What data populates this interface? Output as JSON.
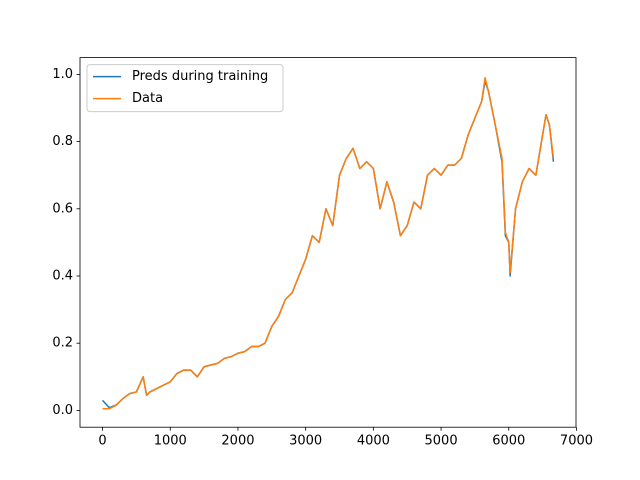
{
  "chart_data": {
    "type": "line",
    "x": [
      0,
      100,
      200,
      300,
      400,
      500,
      600,
      650,
      700,
      800,
      900,
      1000,
      1100,
      1200,
      1300,
      1400,
      1500,
      1600,
      1700,
      1800,
      1900,
      2000,
      2100,
      2200,
      2300,
      2400,
      2500,
      2600,
      2700,
      2800,
      2900,
      3000,
      3100,
      3200,
      3300,
      3400,
      3500,
      3600,
      3700,
      3800,
      3900,
      4000,
      4100,
      4200,
      4300,
      4400,
      4500,
      4600,
      4700,
      4800,
      4900,
      5000,
      5100,
      5200,
      5300,
      5400,
      5500,
      5600,
      5650,
      5700,
      5800,
      5900,
      5950,
      6000,
      6020,
      6100,
      6200,
      6300,
      6400,
      6500,
      6550,
      6600,
      6660
    ],
    "series": [
      {
        "name": "Preds during training",
        "color": "#1f77b4",
        "values": [
          0.03,
          0.008,
          0.016,
          0.035,
          0.05,
          0.055,
          0.1,
          0.045,
          0.055,
          0.065,
          0.075,
          0.085,
          0.11,
          0.12,
          0.12,
          0.1,
          0.13,
          0.135,
          0.14,
          0.155,
          0.16,
          0.17,
          0.175,
          0.19,
          0.19,
          0.2,
          0.25,
          0.28,
          0.33,
          0.35,
          0.4,
          0.45,
          0.52,
          0.5,
          0.6,
          0.55,
          0.7,
          0.75,
          0.78,
          0.72,
          0.74,
          0.72,
          0.6,
          0.68,
          0.62,
          0.52,
          0.55,
          0.62,
          0.6,
          0.7,
          0.72,
          0.7,
          0.73,
          0.73,
          0.75,
          0.82,
          0.87,
          0.92,
          0.98,
          0.95,
          0.85,
          0.74,
          0.52,
          0.5,
          0.4,
          0.6,
          0.68,
          0.72,
          0.7,
          0.82,
          0.88,
          0.85,
          0.74
        ]
      },
      {
        "name": "Data",
        "color": "#ff7f0e",
        "values": [
          0.005,
          0.005,
          0.015,
          0.035,
          0.05,
          0.055,
          0.1,
          0.045,
          0.055,
          0.065,
          0.075,
          0.085,
          0.11,
          0.12,
          0.12,
          0.1,
          0.13,
          0.135,
          0.14,
          0.155,
          0.16,
          0.17,
          0.175,
          0.19,
          0.19,
          0.2,
          0.25,
          0.28,
          0.33,
          0.35,
          0.4,
          0.45,
          0.52,
          0.5,
          0.6,
          0.55,
          0.7,
          0.75,
          0.78,
          0.72,
          0.74,
          0.72,
          0.6,
          0.68,
          0.62,
          0.52,
          0.55,
          0.62,
          0.6,
          0.7,
          0.72,
          0.7,
          0.73,
          0.73,
          0.75,
          0.82,
          0.87,
          0.92,
          0.99,
          0.95,
          0.85,
          0.75,
          0.53,
          0.5,
          0.41,
          0.6,
          0.68,
          0.72,
          0.7,
          0.82,
          0.88,
          0.85,
          0.75
        ]
      }
    ],
    "xlim": [
      -333,
      6993
    ],
    "xticks": [
      0,
      1000,
      2000,
      3000,
      4000,
      5000,
      6000,
      7000
    ],
    "ylim": [
      -0.05,
      1.05
    ],
    "yticks": [
      {
        "value": 0,
        "label": "0.0"
      },
      0.2,
      0.4,
      0.6,
      0.8,
      {
        "value": 1,
        "label": "1.0"
      }
    ],
    "legend": "upper left"
  }
}
